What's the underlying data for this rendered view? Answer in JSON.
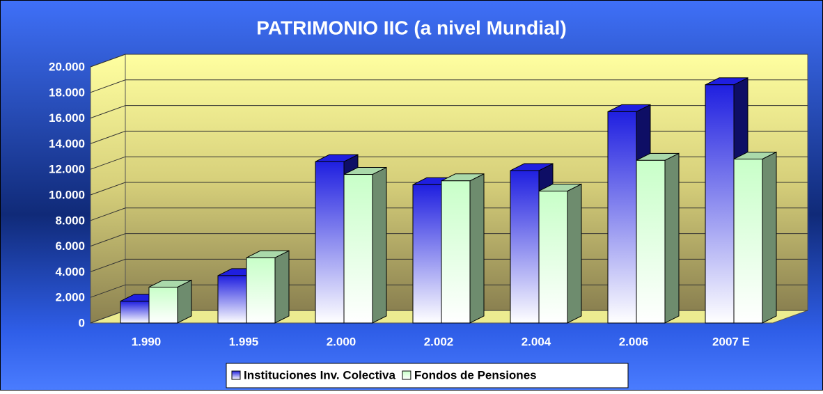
{
  "chart_data": {
    "type": "bar3d",
    "title": "PATRIMONIO IIC (a nivel Mundial)",
    "categories": [
      "1.990",
      "1.995",
      "2.000",
      "2.002",
      "2.004",
      "2.006",
      "2007 E"
    ],
    "series": [
      {
        "name": "Instituciones Inv. Colectiva",
        "color": "#1f1fe0",
        "values": [
          1700,
          3700,
          12600,
          10800,
          11900,
          16500,
          18600
        ]
      },
      {
        "name": "Fondos de Pensiones",
        "color": "#c8ffc8",
        "values": [
          2800,
          5100,
          11600,
          11100,
          10300,
          12700,
          12800
        ]
      }
    ],
    "ylim": [
      0,
      20000
    ],
    "yticks": [
      0,
      {
        "value": 2000,
        "label": "2.000"
      },
      {
        "value": 4000,
        "label": "4.000"
      },
      {
        "value": 6000,
        "label": "6.000"
      },
      {
        "value": 8000,
        "label": "8.000"
      },
      {
        "value": 10000,
        "label": "10.000"
      },
      {
        "value": 12000,
        "label": "12.000"
      },
      {
        "value": 14000,
        "label": "14.000"
      },
      {
        "value": 16000,
        "label": "16.000"
      },
      {
        "value": 18000,
        "label": "18.000"
      },
      {
        "value": 20000,
        "label": "20.000"
      }
    ],
    "grid": true,
    "legend": "bottom"
  }
}
